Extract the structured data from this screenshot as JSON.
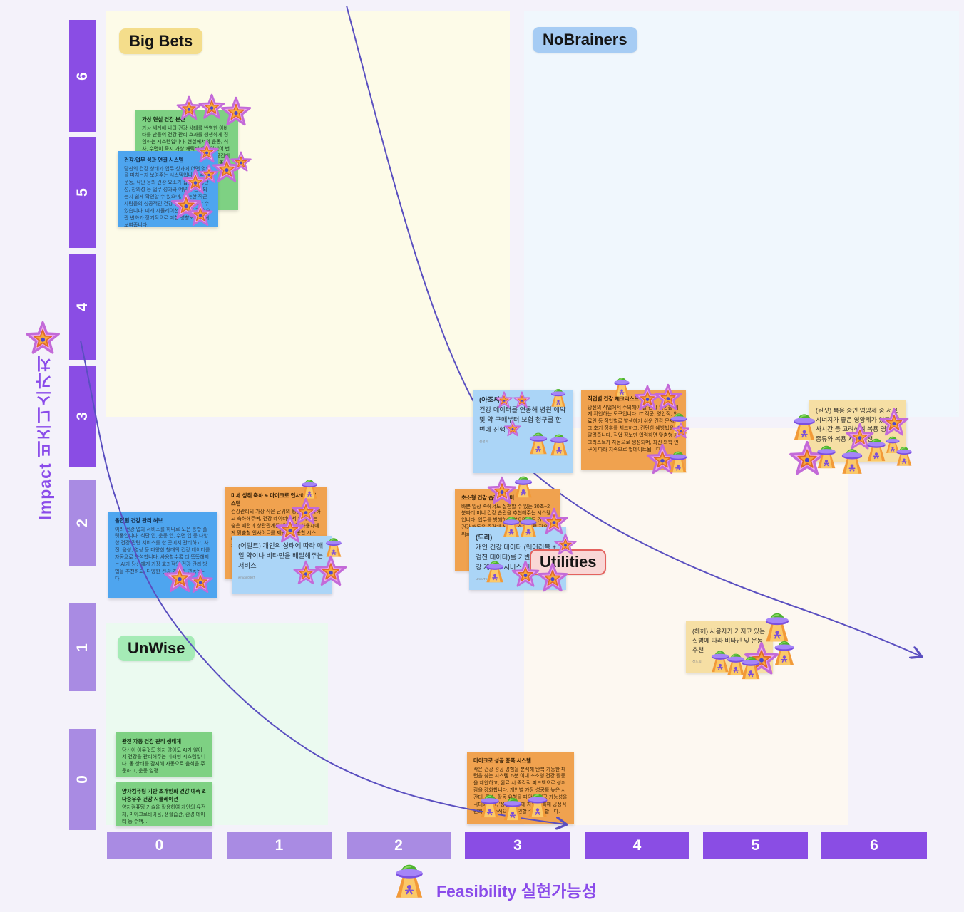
{
  "board": {
    "y_axis": {
      "title": "Impact 비즈니스가치",
      "ticks": [
        "6",
        "5",
        "4",
        "3",
        "2",
        "1",
        "0"
      ]
    },
    "x_axis": {
      "title": "Feasibility 실현가능성",
      "ticks": [
        "0",
        "1",
        "2",
        "3",
        "4",
        "5",
        "6"
      ]
    },
    "quadrants": [
      {
        "id": "big_bets",
        "label": "Big Bets",
        "chip_color": "#F4DD8B",
        "bg_color": "#FDFBE8"
      },
      {
        "id": "nobrainers",
        "label": "NoBrainers",
        "chip_color": "#A6CCF4",
        "bg_color": "#F0F7FD"
      },
      {
        "id": "unwise",
        "label": "UnWise",
        "chip_color": "#A5EBB6",
        "bg_color": "#EBFAF0"
      },
      {
        "id": "utilities",
        "label": "Utilities",
        "chip_color": "#F9D7D6",
        "bg_color": "#FDF8F1"
      }
    ]
  },
  "colors": {
    "page_bg": "#F4F2FA",
    "axis_dark": "#8A4DE4",
    "axis_light": "#A98BE3",
    "axis_title": "#8A4BEA",
    "curve": "#5A4FC0",
    "note_green": "#7ED183",
    "note_blue": "#4EA5EF",
    "note_light_blue": "#ABD5F7",
    "note_orange": "#F0A24F",
    "note_tan": "#F6DFA4"
  },
  "stickers": {
    "star": "star-sticker-icon",
    "ufo": "ufo-sticker-icon"
  },
  "notes": [
    {
      "title": "가상 현실 건강 분신",
      "body": "가상 세계에 나의 건강 상태를 반영한 아바타를 만들어 건강 관리 효과를 생생하게 경험하는 시스템입니다. 현실에서의 운동, 식사, 수면이 즉시 가상 캐릭터에 반영되어 변화를 눈으로 확인할 수 있으며, 가상 공간에서 목표를 달성하면 실제 건강 습관도 좋아지는 것을 체험하며 즉...",
      "author": ""
    },
    {
      "title": "건강-업무 성과 연결 시스템",
      "body": "당신의 건강 상태가 업무 성과에 어떤 영향을 미치는지 보여주는 시스템입니다. 수면, 운동, 식단 등의 건강 요소가 집중력, 생산성, 창의성 등 업무 성과와 어떻게 연결되는지 쉽게 확인할 수 있으며, 비슷한 직군 사람들의 성공적인 건강 습관도 참고할 수 있습니다. 미래 시뮬레이션을 통해 건강 습관 변화가 장기적으로 미칠 영향도 예측해 보여줍니다.",
      "author": ""
    },
    {
      "title": "(아조씨)",
      "body": "건강 데이터를 연동해 병원 예약 및 약 구매부터 보험 청구를 한번에 진행",
      "author": "김성희"
    },
    {
      "title": "직업별 건강 체크리스트",
      "body": "당신의 직업에서 주의해야 할 건강 위험을 쉽게 확인하는 도구입니다. IT 직군, 영업직, 의료인 등 직업별로 발생하기 쉬운 건강 문제와 그 초기 징후를 체크하고, 간단한 예방법을 알려줍니다. 직업 정보만 입력하면 맞춤형 체크리스트가 자동으로 생성되며, 최신 의학 연구에 따라 지속으로 업데이트됩니다.",
      "author": ""
    },
    {
      "title": "",
      "body": "(원샷) 복용 중인 영양제 중 서로 시너지가 좋은 영양제가 있고, 식사시간 등 고려하여 복용 영양제 종류와 복용 시간 추천",
      "author": ""
    },
    {
      "title": "미세 성취 축하 & 마이크로 인사이트 시스템",
      "body": "건강관리의 가장 작은 단위의 행동도 기록하고 축하해주며, 건강 데이터에서 의미 있는 숨은 패턴과 상관관계를 발견하여 사용자에게 맞춤형 인사이트를 제공하는 통합 시스템. 예를 들어 '오늘 계단 3층 오르기' 같은 작은 목표를 달성하...",
      "author": ""
    },
    {
      "title": "",
      "body": "(어덜트) 개인의 상태에 따라 매일 약이나 비타민을 배달해주는 서비스",
      "author": "wmgin0807"
    },
    {
      "title": "올인원 건강 관리 허브",
      "body": "여러 건강 앱과 서비스를 하나로 모은 통합 플랫폼입니다. 식단 앱, 운동 앱, 수면 앱 등 다양한 건강 관련 서비스를 한 곳에서 관리하고, 사진, 음성, 영상 등 다양한 형태의 건강 데이터를 자동으로 분석합니다. 사용할수록 더 똑똑해지는 AI가 당신에게 가장 효과적인 건강 관리 방법을 추천하고, 다양한 건강 기기와 연동됩니다.",
      "author": ""
    },
    {
      "title": "초소형 건강 습관 도우미",
      "body": "바쁜 일상 속에서도 실천할 수 있는 30초~2분짜리 미니 건강 습관을 추천해주는 시스템입니다. 업무를 방해하지 않으면서도 간단한 건강 행동을 즐겁게 실천할 수 있도록 작은 단위로 터득하게 합니다.",
      "author": ""
    },
    {
      "title": "(도리)",
      "body": "개인 건강 데이터 (웨어러블 + 검진 데이터)를 기반으로 한 건강 계산기 서비스 제공",
      "author": "Uma Thurman"
    },
    {
      "title": "",
      "body": "(헤헤) 사용자가 가지고 있는 질병에 따라 비타민 및 운동 추천",
      "author": "정도희"
    },
    {
      "title": "완전 자동 건강 관리 생태계",
      "body": "당신이 아무것도 하지 않아도 AI가 알아서 건강을 관리해주는 미래형 시스템입니다. 몸 상태를 감지해 자동으로 음식을 주문하고, 운동 일정...",
      "author": ""
    },
    {
      "title": "양자컴퓨팅 기반 초개인화 건강 예측 & 다중우주 건강 시뮬레이션",
      "body": "양자컴퓨팅 기술을 활용하여 개인의 유전체, 마이크로바이옴, 생활습관, 환경 데이터 등 수백...",
      "author": ""
    },
    {
      "title": "마이크로 성공 증폭 시스템",
      "body": "작은 건강 성공 경험을 분석해 반복 가능한 패턴을 찾는 시스템. 5분 이내 초소형 건강 활동을 제안하고, 완료 시 즉각적 피드백으로 성취감을 강화합니다. 개인별 가장 성공률 높은 시간대, 장소, 활동 유형을 파악해 성공 가능성을 극대화하고, '성공 일기'에 자동 기록해 긍정적 변화를 지속적으로 확인할 수 있게 합니다.",
      "author": ""
    }
  ]
}
